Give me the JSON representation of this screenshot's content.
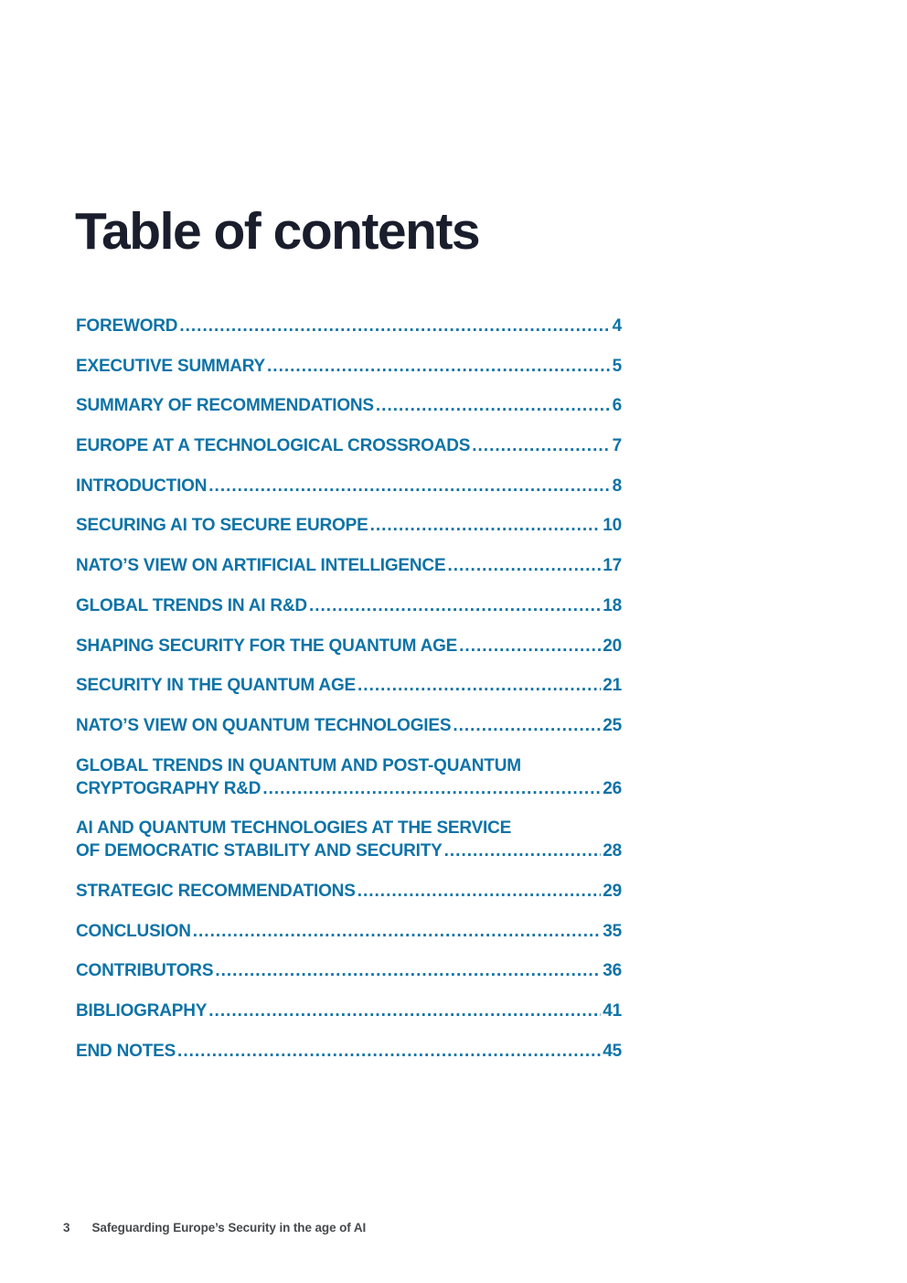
{
  "document": {
    "title": "Table of contents",
    "footer": {
      "page_number": "3",
      "text": "Safeguarding Europe’s Security in the age of AI"
    }
  },
  "toc": {
    "entries": [
      {
        "label": "FOREWORD",
        "page": "4"
      },
      {
        "label": "EXECUTIVE SUMMARY",
        "page": "5"
      },
      {
        "label": "SUMMARY OF RECOMMENDATIONS",
        "page": "6"
      },
      {
        "label": "EUROPE AT A TECHNOLOGICAL CROSSROADS",
        "page": "7"
      },
      {
        "label": "INTRODUCTION",
        "page": "8"
      },
      {
        "label": "SECURING AI TO SECURE EUROPE",
        "page": "10"
      },
      {
        "label": "NATO’S VIEW ON ARTIFICIAL INTELLIGENCE",
        "page": "17"
      },
      {
        "label": "GLOBAL TRENDS IN AI R&D",
        "page": "18"
      },
      {
        "label": "SHAPING SECURITY FOR THE QUANTUM AGE",
        "page": "20"
      },
      {
        "label": "SECURITY IN THE QUANTUM AGE",
        "page": "21"
      },
      {
        "label": "NATO’S VIEW ON QUANTUM TECHNOLOGIES",
        "page": "25"
      },
      {
        "label_lines": [
          "GLOBAL TRENDS IN QUANTUM AND POST-QUANTUM",
          "CRYPTOGRAPHY R&D"
        ],
        "page": "26"
      },
      {
        "label_lines": [
          "AI AND QUANTUM TECHNOLOGIES AT THE SERVICE",
          "OF DEMOCRATIC STABILITY AND SECURITY"
        ],
        "page": "28"
      },
      {
        "label": "STRATEGIC RECOMMENDATIONS",
        "page": "29"
      },
      {
        "label": "CONCLUSION",
        "page": "35"
      },
      {
        "label": "CONTRIBUTORS",
        "page": "36"
      },
      {
        "label": "BIBLIOGRAPHY",
        "page": "41"
      },
      {
        "label": "END NOTES",
        "page": "45"
      }
    ]
  },
  "colors": {
    "accent_blue": "#0e73a7",
    "title_navy": "#1a1e2c",
    "footer_gray": "#474a4d"
  }
}
